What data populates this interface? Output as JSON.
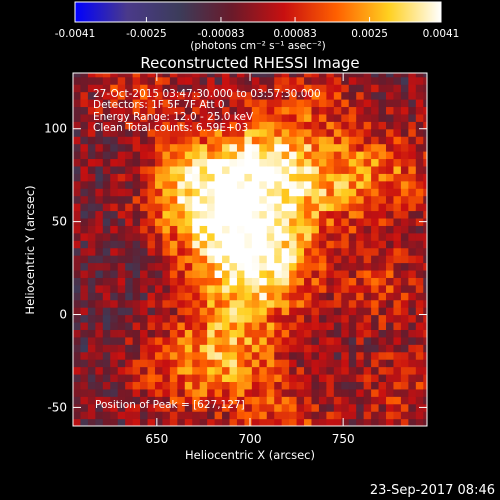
{
  "chart_data": {
    "type": "heatmap",
    "title": "Reconstructed RHESSI Image",
    "xlabel": "Heliocentric X (arcsec)",
    "ylabel": "Heliocentric Y (arcsec)",
    "xlim": [
      605,
      795
    ],
    "ylim": [
      -60,
      130
    ],
    "xticks": [
      650,
      700,
      750
    ],
    "yticks": [
      -50,
      0,
      50,
      100
    ],
    "colorbar": {
      "label": "(photons cm⁻² s⁻¹ asec⁻²)",
      "range": [
        -0.0041,
        0.0041
      ],
      "ticks": [
        "-0.0041",
        "-0.0025",
        "-0.00083",
        "0.00083",
        "0.0025",
        "0.0041"
      ],
      "colormap": [
        "#0000ff",
        "#4a3a8a",
        "#3c3c5a",
        "#6a1a2a",
        "#c81010",
        "#ff6000",
        "#ffd020",
        "#ffffff"
      ]
    },
    "annotations": [
      "27-Oct-2015 03:47:30.000 to 03:57:30.000",
      "Detectors: 1F 5F 7F  Att 0",
      "Energy Range: 12.0 - 25.0 keV",
      "Clean     Total counts: 6.59E+03"
    ],
    "peak_label": "Position of Peak = [627,127]",
    "peak": [
      627,
      127
    ],
    "sources": [
      {
        "x": 700,
        "y": 30,
        "intensity": 1.0
      },
      {
        "x": 672,
        "y": 65,
        "intensity": 0.75
      },
      {
        "x": 710,
        "y": 80,
        "intensity": 0.7
      },
      {
        "x": 685,
        "y": -25,
        "intensity": 0.6
      },
      {
        "x": 745,
        "y": 70,
        "intensity": 0.35
      },
      {
        "x": 775,
        "y": 75,
        "intensity": 0.4
      },
      {
        "x": 770,
        "y": 15,
        "intensity": 0.3
      },
      {
        "x": 780,
        "y": -40,
        "intensity": 0.3
      },
      {
        "x": 635,
        "y": 120,
        "intensity": 0.3
      },
      {
        "x": 740,
        "y": 118,
        "intensity": 0.25
      },
      {
        "x": 720,
        "y": -60,
        "intensity": 0.35
      },
      {
        "x": 650,
        "y": -35,
        "intensity": 0.25
      }
    ]
  },
  "footer": {
    "timestamp": "23-Sep-2017 08:46"
  }
}
